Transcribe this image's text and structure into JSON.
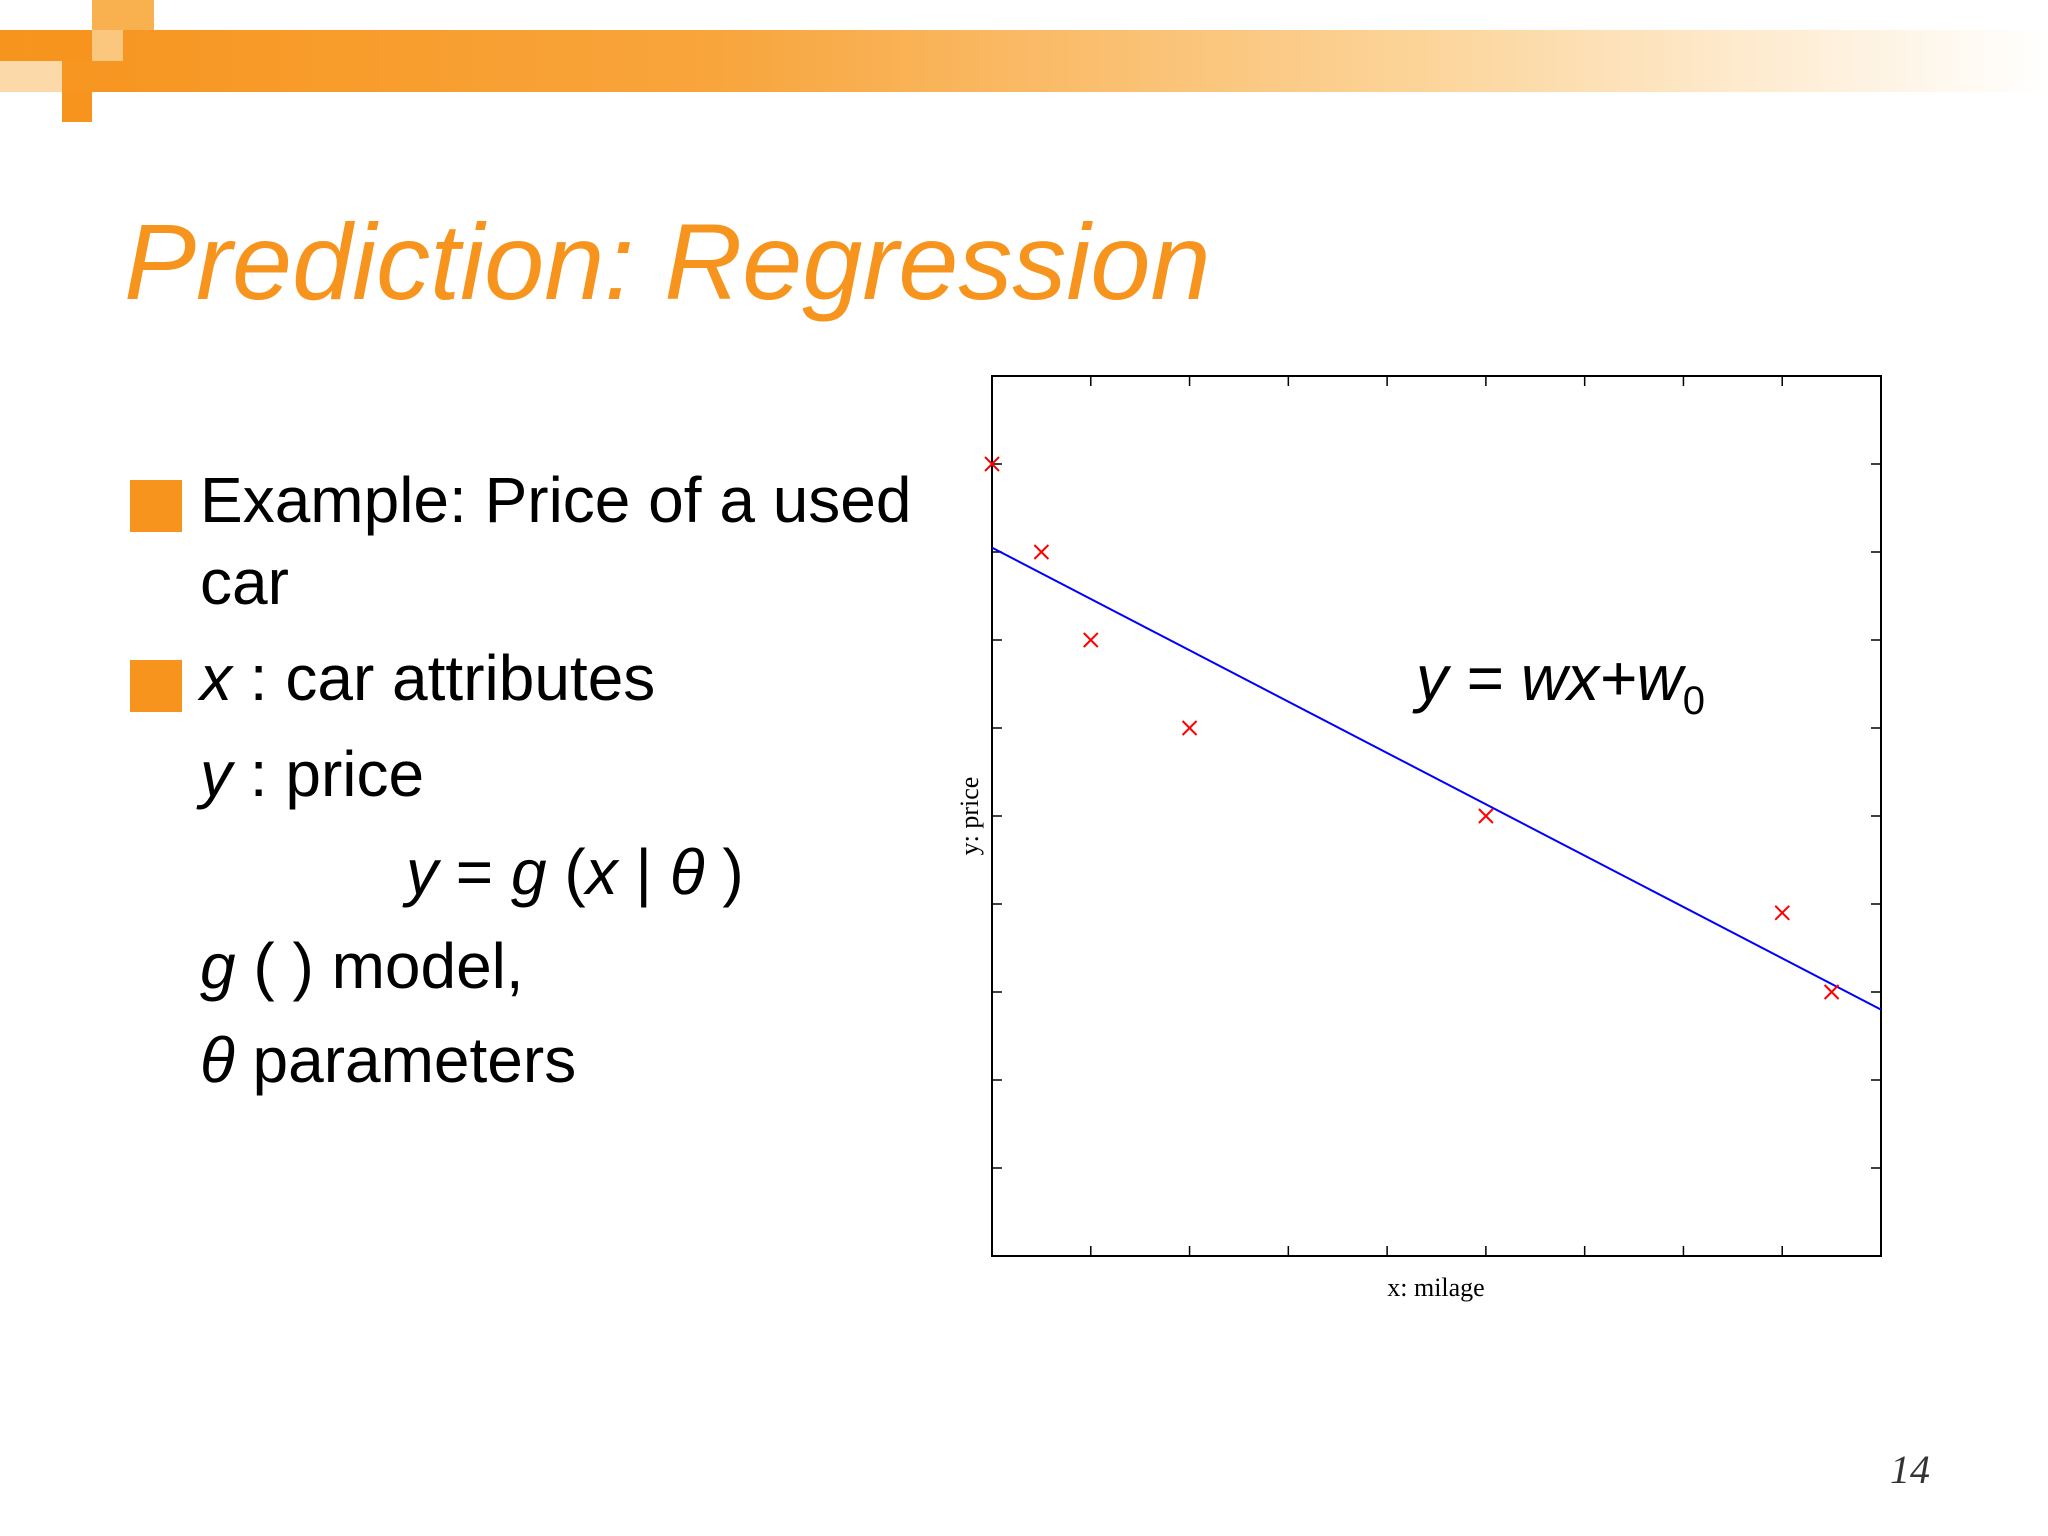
{
  "colors": {
    "accent": "#f7941d",
    "regression_line": "#0000ff",
    "data_point": "#ff0000"
  },
  "slide": {
    "title": "Prediction: Regression",
    "page_number": "14",
    "bullets": [
      {
        "line1": "Example: Price of a used",
        "line2": "car"
      },
      {
        "var": "x",
        "text": " : car attributes"
      }
    ],
    "lines": {
      "y_var": "y",
      "y_text": " : price",
      "formula": {
        "y": "y",
        "eq": " = ",
        "g": "g",
        "open": " (",
        "x": "x",
        "bar": " | ",
        "theta": "θ",
        "close": " )"
      },
      "model": {
        "g": "g",
        "text": " ( ) model,"
      },
      "params": {
        "theta": "θ",
        "text": " parameters"
      }
    },
    "equation": {
      "main": "y = wx+w",
      "sub": "0"
    }
  },
  "chart_data": {
    "type": "scatter",
    "title": "",
    "xlabel": "x: milage",
    "ylabel": "y: price",
    "xlim": [
      0,
      9
    ],
    "ylim": [
      0,
      10
    ],
    "grid": false,
    "x": [
      0,
      0.5,
      1,
      2,
      5,
      8,
      8.5
    ],
    "y": [
      9,
      8,
      7,
      6,
      5,
      3.9,
      3
    ],
    "fit_line": {
      "label": "y = wx+w0",
      "x": [
        0,
        9
      ],
      "y": [
        8.05,
        2.8
      ]
    }
  }
}
